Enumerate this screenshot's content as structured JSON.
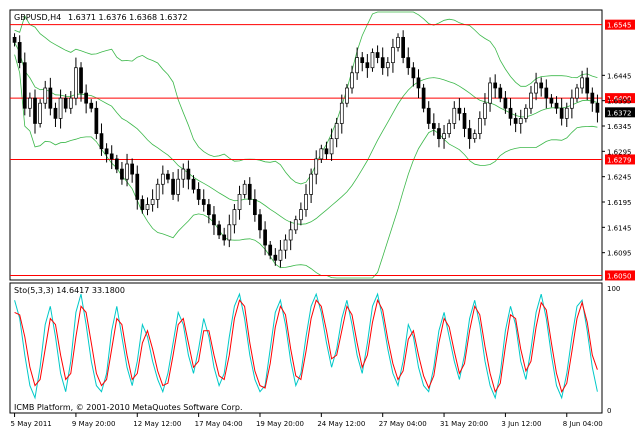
{
  "chart_data": [
    {
      "type": "candlestick",
      "symbol_header": "GBPUSD,H4",
      "ohlc_header": "1.6371 1.6376 1.6368 1.6372",
      "y_ticks": [
        "1.6545",
        "1.6445",
        "1.6395",
        "1.6345",
        "1.6295",
        "1.6245",
        "1.6195",
        "1.6145",
        "1.6095",
        "1.6050"
      ],
      "y_range": [
        1.6045,
        1.657
      ],
      "horizontal_levels": [
        {
          "value": 1.6545,
          "label": "1.6545",
          "color": "#ff0000"
        },
        {
          "value": 1.64,
          "label": "1.6400",
          "color": "#ff0000"
        },
        {
          "value": 1.6279,
          "label": "1.6279",
          "color": "#ff0000"
        },
        {
          "value": 1.605,
          "label": "1.6050",
          "color": "#ff0000"
        }
      ],
      "current_price": {
        "value": 1.6372,
        "label": "1.6372"
      },
      "x_labels": [
        "5 May 2011",
        "9 May 20:00",
        "12 May 12:00",
        "17 May 04:00",
        "19 May 20:00",
        "24 May 12:00",
        "27 May 04:00",
        "31 May 20:00",
        "3 Jun 12:00",
        "8 Jun 04:00"
      ],
      "x_label_index": [
        0,
        12,
        24,
        36,
        48,
        60,
        72,
        84,
        96,
        108
      ],
      "close_path": [
        1.651,
        1.647,
        1.638,
        1.64,
        1.635,
        1.639,
        1.642,
        1.638,
        1.636,
        1.64,
        1.638,
        1.64,
        1.646,
        1.641,
        1.639,
        1.638,
        1.633,
        1.63,
        1.629,
        1.628,
        1.626,
        1.624,
        1.627,
        1.625,
        1.62,
        1.618,
        1.619,
        1.62,
        1.623,
        1.625,
        1.624,
        1.621,
        1.624,
        1.626,
        1.624,
        1.622,
        1.62,
        1.619,
        1.617,
        1.615,
        1.613,
        1.612,
        1.615,
        1.618,
        1.621,
        1.623,
        1.62,
        1.617,
        1.614,
        1.611,
        1.609,
        1.608,
        1.61,
        1.612,
        1.614,
        1.616,
        1.618,
        1.621,
        1.625,
        1.628,
        1.63,
        1.629,
        1.632,
        1.635,
        1.639,
        1.642,
        1.645,
        1.648,
        1.647,
        1.646,
        1.649,
        1.648,
        1.646,
        1.647,
        1.65,
        1.652,
        1.648,
        1.646,
        1.644,
        1.642,
        1.638,
        1.635,
        1.634,
        1.632,
        1.633,
        1.635,
        1.638,
        1.637,
        1.634,
        1.632,
        1.633,
        1.636,
        1.639,
        1.643,
        1.642,
        1.64,
        1.638,
        1.636,
        1.635,
        1.636,
        1.638,
        1.641,
        1.643,
        1.642,
        1.64,
        1.639,
        1.638,
        1.636,
        1.638,
        1.64,
        1.642,
        1.644,
        1.641,
        1.639,
        1.6372
      ],
      "indicator": "Bollinger Bands"
    },
    {
      "type": "line",
      "title": "Sto(5,3,3) 14.6417 33.1800",
      "y_ticks": [
        "100",
        "0"
      ],
      "ylim": [
        0,
        100
      ],
      "series": [
        {
          "color": "#00c8c8",
          "values": [
            90,
            75,
            45,
            20,
            10,
            35,
            70,
            85,
            60,
            30,
            15,
            40,
            80,
            95,
            70,
            40,
            20,
            15,
            30,
            65,
            85,
            60,
            35,
            20,
            40,
            70,
            60,
            40,
            25,
            15,
            30,
            55,
            80,
            70,
            45,
            30,
            50,
            75,
            60,
            35,
            20,
            30,
            60,
            85,
            95,
            75,
            45,
            25,
            15,
            20,
            50,
            80,
            90,
            70,
            40,
            20,
            30,
            60,
            85,
            95,
            80,
            55,
            35,
            50,
            75,
            90,
            70,
            45,
            30,
            55,
            85,
            95,
            75,
            50,
            30,
            20,
            40,
            70,
            60,
            35,
            20,
            15,
            35,
            65,
            80,
            60,
            40,
            25,
            45,
            75,
            90,
            70,
            40,
            20,
            10,
            30,
            65,
            85,
            70,
            40,
            25,
            50,
            80,
            95,
            75,
            45,
            20,
            10,
            30,
            60,
            85,
            90,
            65,
            35,
            15
          ]
        },
        {
          "color": "#ff0000",
          "values": [
            80,
            78,
            60,
            35,
            20,
            25,
            50,
            75,
            70,
            45,
            25,
            30,
            60,
            85,
            80,
            55,
            30,
            20,
            25,
            50,
            75,
            70,
            45,
            25,
            30,
            55,
            65,
            50,
            32,
            20,
            22,
            45,
            70,
            75,
            55,
            35,
            40,
            65,
            65,
            45,
            28,
            25,
            45,
            75,
            90,
            85,
            55,
            32,
            20,
            18,
            38,
            68,
            85,
            78,
            50,
            28,
            25,
            48,
            75,
            90,
            85,
            65,
            42,
            45,
            65,
            85,
            78,
            55,
            35,
            45,
            72,
            90,
            82,
            58,
            38,
            25,
            32,
            58,
            65,
            45,
            28,
            18,
            28,
            55,
            75,
            68,
            48,
            30,
            38,
            65,
            85,
            78,
            52,
            30,
            15,
            22,
            52,
            78,
            75,
            50,
            32,
            40,
            68,
            88,
            82,
            55,
            30,
            15,
            22,
            48,
            75,
            88,
            72,
            45,
            33
          ]
        }
      ]
    }
  ],
  "footer": {
    "copyright": "ICMB Platform, © 2001-2010 MetaQuotes Software Corp."
  }
}
